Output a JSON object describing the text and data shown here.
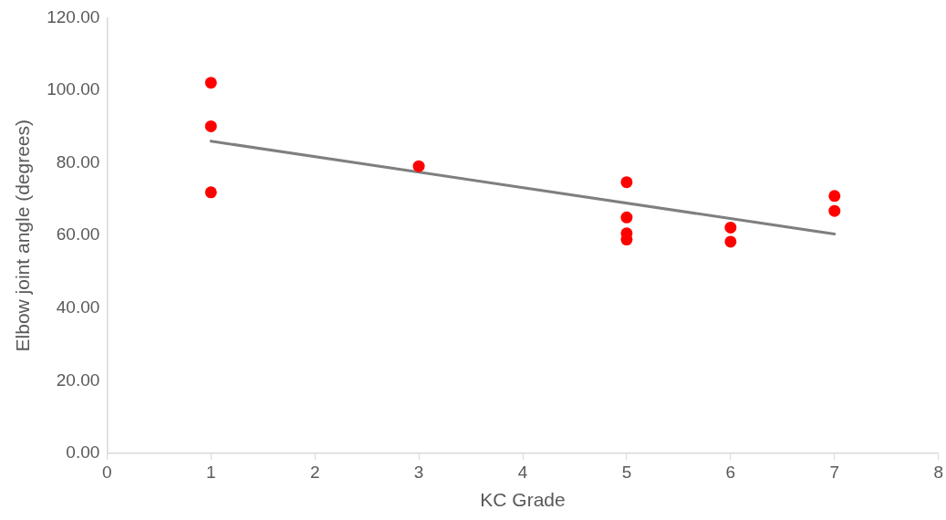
{
  "chart_data": {
    "type": "scatter",
    "xlabel": "KC Grade",
    "ylabel": "Elbow joint angle (degrees)",
    "xlim": [
      0,
      8
    ],
    "xticks": [
      0,
      1,
      2,
      3,
      4,
      5,
      6,
      7,
      8
    ],
    "ylim": [
      0,
      120
    ],
    "yticks": [
      {
        "value": 0,
        "label": "0.00"
      },
      {
        "value": 20,
        "label": "20.00"
      },
      {
        "value": 40,
        "label": "40.00"
      },
      {
        "value": 60,
        "label": "60.00"
      },
      {
        "value": 80,
        "label": "80.00"
      },
      {
        "value": 100,
        "label": "100.00"
      },
      {
        "value": 120,
        "label": "120.00"
      }
    ],
    "grid": false,
    "legend": false,
    "marker": "circle",
    "series": [
      {
        "type": "scatter",
        "color": "#ff0000",
        "x": [
          1,
          1,
          1,
          3,
          5,
          5,
          5,
          5,
          6,
          6,
          7,
          7
        ],
        "values": [
          102.1,
          90.1,
          71.9,
          79.1,
          74.7,
          65.0,
          60.6,
          58.9,
          62.2,
          58.3,
          70.9,
          66.8
        ]
      },
      {
        "type": "line",
        "color": "#7f7f7f",
        "marker": "none",
        "line_style": "solid",
        "x": [
          1,
          7
        ],
        "values": [
          86.0,
          60.4
        ]
      }
    ]
  }
}
